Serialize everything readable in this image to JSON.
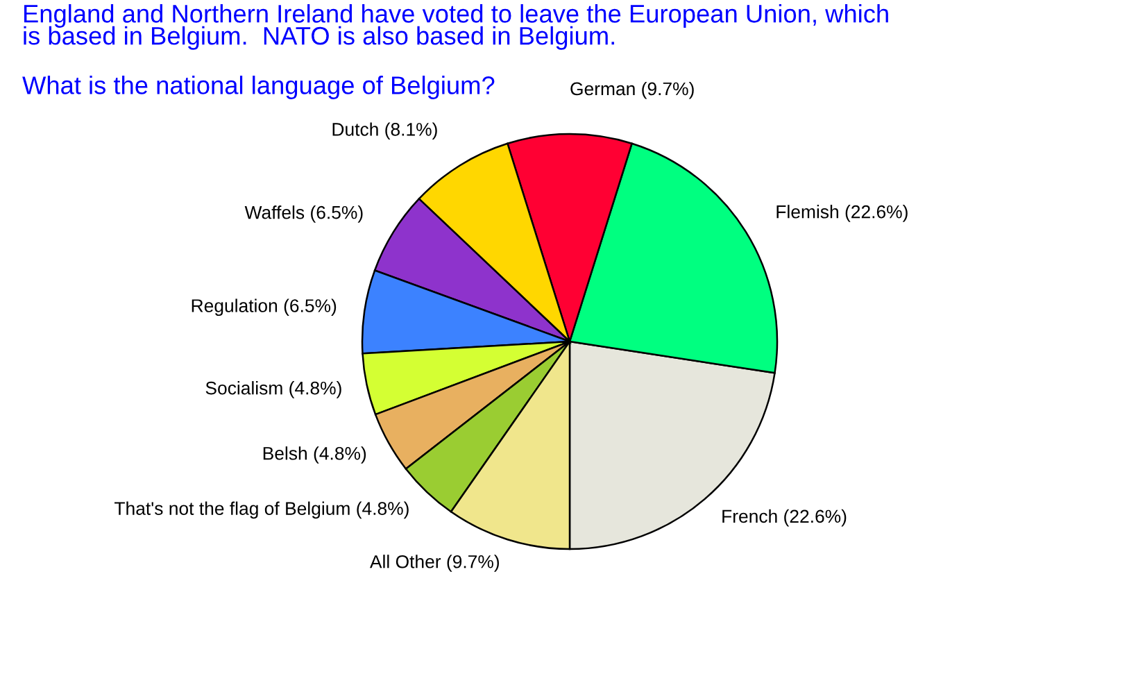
{
  "chart_data": {
    "type": "pie",
    "title": "England and Northern Ireland have voted to leave the European Union, which\nis based in Belgium.  NATO is also based in Belgium.",
    "subtitle": "What is the national language of Belgium?",
    "categories": [
      "French",
      "Flemish",
      "German",
      "Dutch",
      "Waffels",
      "Regulation",
      "Socialism",
      "Belsh",
      "That's not the flag of Belgium",
      "All Other"
    ],
    "values": [
      22.6,
      22.6,
      9.7,
      8.1,
      6.5,
      6.5,
      4.8,
      4.8,
      4.8,
      9.7
    ],
    "colors": [
      "#e6e6dc",
      "#00ff80",
      "#ff0033",
      "#ffd700",
      "#8e33cc",
      "#3c82ff",
      "#d4ff33",
      "#e8b060",
      "#9acd32",
      "#f0e68c"
    ],
    "value_labels": [
      "(22.6%)",
      "(22.6%)",
      "(9.7%)",
      "(8.1%)",
      "(6.5%)",
      "(6.5%)",
      "(4.8%)",
      "(4.8%)",
      "(4.8%)",
      "(9.7%)"
    ]
  }
}
